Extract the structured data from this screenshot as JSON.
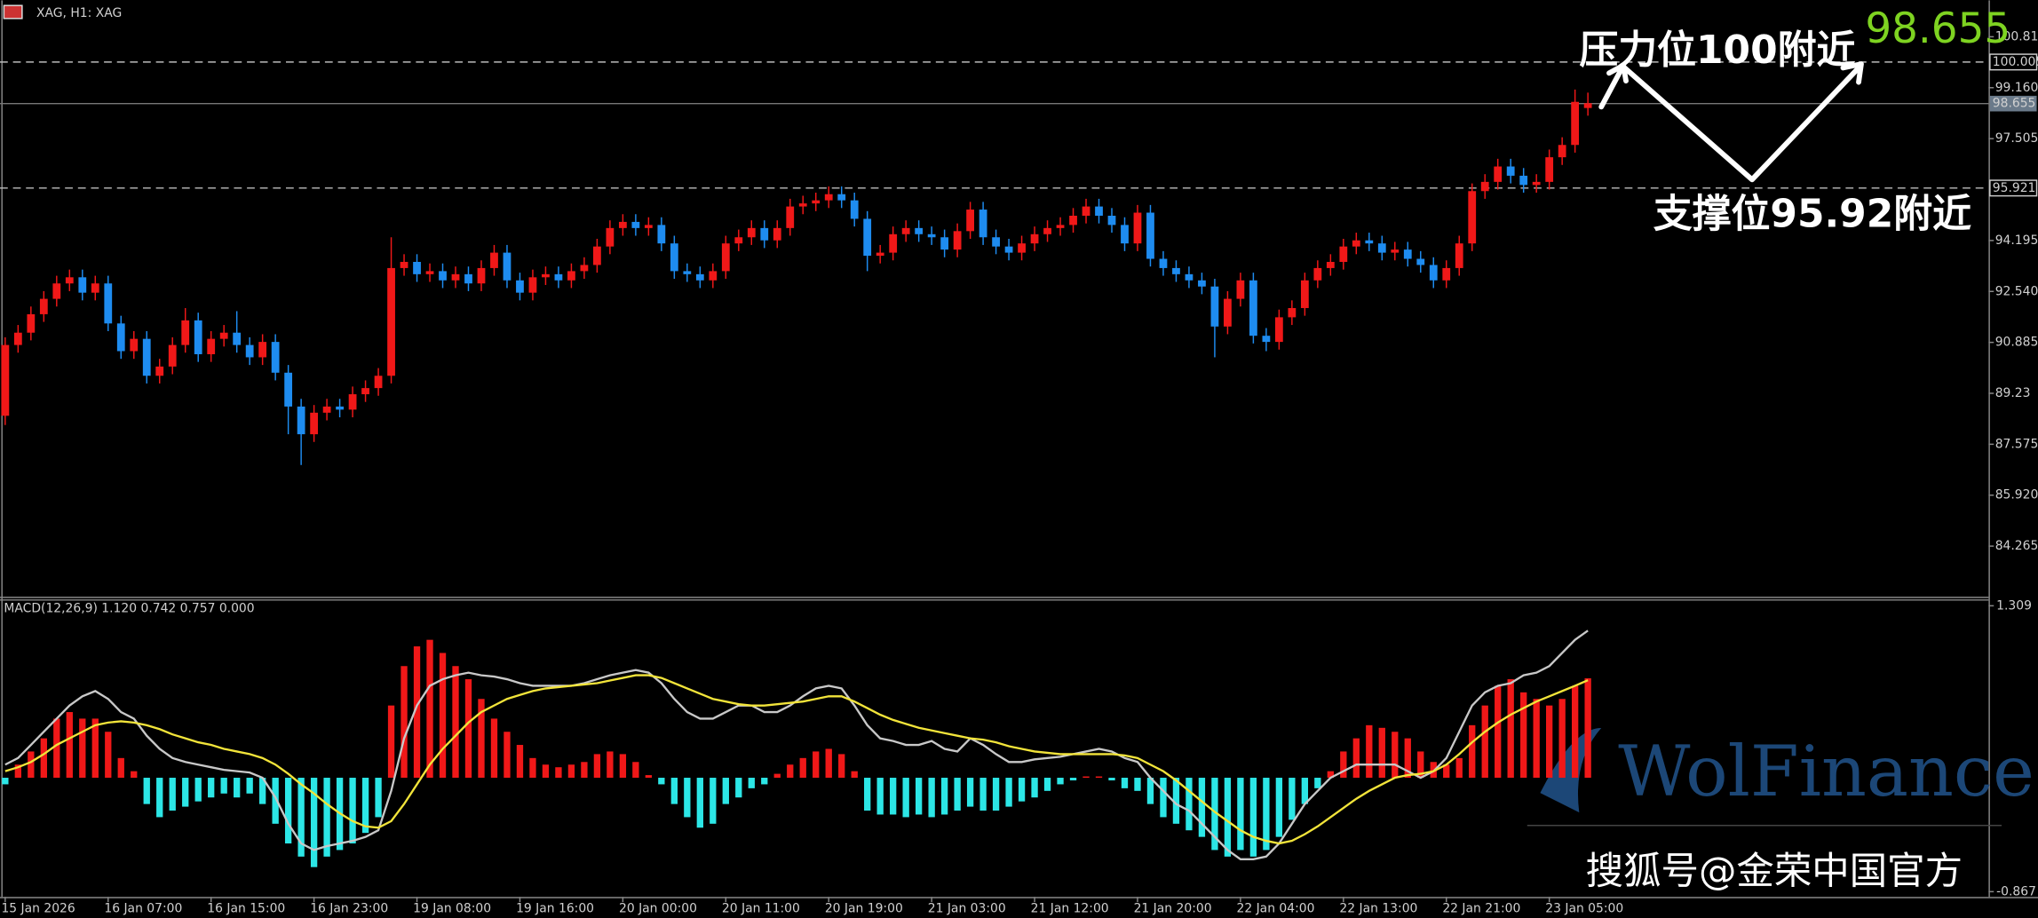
{
  "chart_data": [
    {
      "type": "candlestick",
      "title": "XAG, H1: XAG",
      "categories": [
        "15 Jan 2026",
        null,
        null,
        null,
        null,
        null,
        null,
        null,
        "16 Jan 07:00",
        null,
        null,
        null,
        null,
        null,
        null,
        null,
        "16 Jan 15:00",
        null,
        null,
        null,
        null,
        null,
        null,
        null,
        "16 Jan 23:00",
        null,
        null,
        null,
        null,
        null,
        null,
        null,
        "19 Jan 08:00",
        null,
        null,
        null,
        null,
        null,
        null,
        null,
        "19 Jan 16:00",
        null,
        null,
        null,
        null,
        null,
        null,
        null,
        "20 Jan 00:00",
        null,
        null,
        null,
        null,
        null,
        null,
        null,
        "20 Jan 11:00",
        null,
        null,
        null,
        null,
        null,
        null,
        null,
        "20 Jan 19:00",
        null,
        null,
        null,
        null,
        null,
        null,
        null,
        "21 Jan 03:00",
        null,
        null,
        null,
        null,
        null,
        null,
        null,
        "21 Jan 12:00",
        null,
        null,
        null,
        null,
        null,
        null,
        null,
        "21 Jan 20:00",
        null,
        null,
        null,
        null,
        null,
        null,
        null,
        "22 Jan 04:00",
        null,
        null,
        null,
        null,
        null,
        null,
        null,
        "22 Jan 13:00",
        null,
        null,
        null,
        null,
        null,
        null,
        null,
        "22 Jan 21:00",
        null,
        null,
        null,
        null,
        null,
        null,
        null,
        "23 Jan 05:00",
        null,
        null,
        null
      ],
      "open": [
        88.5,
        90.8,
        91.2,
        91.8,
        92.3,
        92.8,
        93.0,
        92.5,
        92.8,
        91.5,
        90.6,
        91.0,
        89.8,
        90.1,
        90.8,
        91.6,
        90.5,
        91.0,
        91.2,
        90.8,
        90.4,
        90.9,
        89.9,
        88.8,
        87.9,
        88.6,
        88.8,
        88.7,
        89.2,
        89.4,
        89.8,
        93.3,
        93.5,
        93.1,
        93.2,
        92.9,
        93.1,
        92.8,
        93.3,
        93.8,
        92.9,
        92.5,
        93.0,
        93.1,
        92.9,
        93.2,
        93.4,
        94.0,
        94.6,
        94.8,
        94.6,
        94.7,
        94.1,
        93.2,
        93.1,
        92.9,
        93.2,
        94.1,
        94.3,
        94.6,
        94.2,
        94.6,
        95.3,
        95.4,
        95.5,
        95.7,
        95.5,
        94.9,
        93.7,
        93.8,
        94.4,
        94.6,
        94.4,
        94.3,
        93.9,
        94.5,
        95.2,
        94.3,
        94.0,
        93.8,
        94.1,
        94.4,
        94.6,
        94.7,
        95.0,
        95.3,
        95.0,
        94.7,
        94.1,
        95.1,
        93.6,
        93.3,
        93.1,
        92.9,
        92.7,
        91.4,
        92.3,
        92.9,
        91.1,
        90.9,
        91.7,
        92.0,
        92.9,
        93.3,
        93.5,
        94.0,
        94.2,
        94.1,
        93.8,
        93.9,
        93.6,
        93.4,
        92.9,
        93.3,
        94.1,
        95.8,
        96.1,
        96.6,
        96.3,
        96.0,
        96.1,
        96.9,
        97.3,
        98.5
      ],
      "high": [
        91.05,
        91.45,
        92.05,
        92.55,
        93.05,
        93.25,
        93.25,
        93.05,
        93.05,
        91.75,
        91.25,
        91.25,
        90.35,
        91.05,
        92.0,
        91.85,
        91.25,
        91.45,
        91.9,
        91.05,
        91.15,
        91.15,
        90.15,
        89.05,
        88.85,
        89.05,
        89.05,
        89.45,
        89.65,
        90.05,
        94.3,
        93.75,
        93.75,
        93.45,
        93.45,
        93.35,
        93.35,
        93.55,
        94.05,
        94.05,
        93.15,
        93.25,
        93.35,
        93.35,
        93.45,
        93.65,
        94.25,
        94.85,
        95.05,
        95.05,
        94.95,
        94.95,
        94.35,
        93.45,
        93.35,
        93.45,
        94.35,
        94.55,
        94.85,
        94.85,
        94.85,
        95.55,
        95.65,
        95.75,
        95.95,
        95.95,
        95.75,
        95.15,
        94.05,
        94.65,
        94.85,
        94.85,
        94.65,
        94.55,
        94.75,
        95.45,
        95.45,
        94.55,
        94.25,
        94.35,
        94.65,
        94.85,
        94.95,
        95.25,
        95.55,
        95.55,
        95.25,
        94.95,
        95.35,
        95.35,
        93.85,
        93.55,
        93.35,
        93.15,
        92.95,
        92.55,
        93.15,
        93.15,
        91.35,
        91.95,
        92.25,
        93.15,
        93.55,
        93.75,
        94.25,
        94.45,
        94.45,
        94.35,
        94.15,
        94.15,
        93.85,
        93.65,
        93.55,
        94.35,
        96.05,
        96.35,
        96.85,
        96.85,
        96.55,
        96.35,
        97.15,
        97.55,
        99.1,
        99.0
      ],
      "low": [
        88.2,
        90.55,
        90.95,
        91.55,
        92.05,
        92.55,
        92.25,
        92.25,
        91.25,
        90.35,
        90.35,
        89.55,
        89.55,
        89.85,
        90.55,
        90.25,
        90.25,
        90.75,
        90.55,
        90.15,
        90.15,
        89.65,
        87.9,
        86.9,
        87.65,
        88.35,
        88.45,
        88.45,
        88.95,
        89.15,
        89.55,
        93.05,
        92.85,
        92.85,
        92.65,
        92.65,
        92.55,
        92.55,
        93.05,
        92.65,
        92.25,
        92.25,
        92.75,
        92.65,
        92.65,
        92.95,
        93.15,
        93.75,
        94.35,
        94.35,
        94.35,
        93.85,
        92.95,
        92.85,
        92.65,
        92.65,
        92.95,
        93.85,
        94.05,
        93.95,
        93.95,
        94.35,
        95.05,
        95.15,
        95.25,
        95.25,
        94.65,
        93.2,
        93.45,
        93.55,
        94.15,
        94.15,
        94.05,
        93.65,
        93.65,
        94.25,
        94.05,
        93.75,
        93.55,
        93.55,
        93.85,
        94.15,
        94.35,
        94.45,
        94.75,
        94.75,
        94.45,
        93.85,
        93.85,
        93.35,
        93.05,
        92.85,
        92.65,
        92.45,
        90.4,
        91.15,
        92.05,
        90.85,
        90.6,
        90.65,
        91.45,
        91.75,
        92.65,
        93.05,
        93.25,
        93.75,
        93.85,
        93.55,
        93.55,
        93.35,
        93.15,
        92.65,
        92.65,
        93.05,
        93.85,
        95.55,
        95.85,
        96.05,
        95.75,
        95.75,
        95.85,
        96.65,
        97.05,
        98.25
      ],
      "close": [
        90.8,
        91.2,
        91.8,
        92.3,
        92.8,
        93.0,
        92.5,
        92.8,
        91.5,
        90.6,
        91.0,
        89.8,
        90.1,
        90.8,
        91.6,
        90.5,
        91.0,
        91.2,
        90.8,
        90.4,
        90.9,
        89.9,
        88.8,
        87.9,
        88.6,
        88.8,
        88.7,
        89.2,
        89.4,
        89.8,
        93.3,
        93.5,
        93.1,
        93.2,
        92.9,
        93.1,
        92.8,
        93.3,
        93.8,
        92.9,
        92.5,
        93.0,
        93.1,
        92.9,
        93.2,
        93.4,
        94.0,
        94.6,
        94.8,
        94.6,
        94.7,
        94.1,
        93.2,
        93.1,
        92.9,
        93.2,
        94.1,
        94.3,
        94.6,
        94.2,
        94.6,
        95.3,
        95.4,
        95.5,
        95.7,
        95.5,
        94.9,
        93.7,
        93.8,
        94.4,
        94.6,
        94.4,
        94.3,
        93.9,
        94.5,
        95.2,
        94.3,
        94.0,
        93.8,
        94.1,
        94.4,
        94.6,
        94.7,
        95.0,
        95.3,
        95.0,
        94.7,
        94.1,
        95.1,
        93.6,
        93.3,
        93.1,
        92.9,
        92.7,
        91.4,
        92.3,
        92.9,
        91.1,
        90.9,
        91.7,
        92.0,
        92.9,
        93.3,
        93.5,
        94.0,
        94.2,
        94.1,
        93.8,
        93.9,
        93.6,
        93.4,
        92.9,
        93.3,
        94.1,
        95.8,
        96.1,
        96.6,
        96.3,
        96.0,
        96.1,
        96.9,
        97.3,
        98.7,
        98.655
      ],
      "color_up": "#f01818",
      "color_down": "#1e8cf0",
      "ylim": [
        82.62,
        102.0
      ],
      "yticks": [
        100.815,
        {
          "value": 99.16,
          "label": "99.160"
        },
        97.505,
        94.195,
        {
          "value": 92.54,
          "label": "92.540"
        },
        90.885,
        89.23,
        87.575,
        {
          "value": 85.92,
          "label": "85.920"
        },
        84.265
      ],
      "levels": [
        {
          "value": 100.005,
          "label": "100.005",
          "style": "dashed"
        },
        {
          "value": 98.655,
          "label": "98.655",
          "style": "solid"
        },
        {
          "value": 95.921,
          "label": "95.921",
          "style": "dashed"
        }
      ],
      "annotations": {
        "resistance": "压力位100附近",
        "price": "98.655",
        "support": "支撑位95.92附近",
        "watermark": "WolFinance",
        "source": "搜狐号@金荣中国官方"
      }
    },
    {
      "type": "macd",
      "label": "MACD(12,26,9) 1.120 0.742 0.757 0.000",
      "ylim": [
        -0.907,
        1.358
      ],
      "yticks": [
        1.309,
        -0.867
      ],
      "histogram": [
        -0.05,
        0.1,
        0.2,
        0.3,
        0.45,
        0.5,
        0.45,
        0.45,
        0.35,
        0.15,
        0.05,
        -0.2,
        -0.3,
        -0.25,
        -0.22,
        -0.18,
        -0.15,
        -0.12,
        -0.15,
        -0.12,
        -0.2,
        -0.35,
        -0.5,
        -0.6,
        -0.68,
        -0.6,
        -0.55,
        -0.5,
        -0.42,
        -0.3,
        0.55,
        0.85,
        1.0,
        1.05,
        0.95,
        0.85,
        0.75,
        0.6,
        0.45,
        0.35,
        0.25,
        0.15,
        0.1,
        0.08,
        0.1,
        0.12,
        0.18,
        0.2,
        0.18,
        0.12,
        0.02,
        -0.05,
        -0.2,
        -0.3,
        -0.38,
        -0.35,
        -0.2,
        -0.15,
        -0.08,
        -0.05,
        0.03,
        0.1,
        0.15,
        0.2,
        0.22,
        0.18,
        0.05,
        -0.25,
        -0.28,
        -0.28,
        -0.3,
        -0.28,
        -0.3,
        -0.28,
        -0.25,
        -0.22,
        -0.25,
        -0.25,
        -0.22,
        -0.18,
        -0.15,
        -0.1,
        -0.05,
        -0.02,
        0.01,
        0.01,
        -0.02,
        -0.08,
        -0.1,
        -0.2,
        -0.3,
        -0.35,
        -0.4,
        -0.45,
        -0.55,
        -0.6,
        -0.55,
        -0.6,
        -0.55,
        -0.45,
        -0.32,
        -0.2,
        -0.08,
        0.05,
        0.2,
        0.3,
        0.4,
        0.38,
        0.35,
        0.3,
        0.2,
        0.12,
        0.1,
        0.15,
        0.4,
        0.55,
        0.7,
        0.75,
        0.65,
        0.6,
        0.55,
        0.6,
        0.7,
        0.757
      ],
      "macd": [
        0.1,
        0.15,
        0.25,
        0.35,
        0.45,
        0.55,
        0.62,
        0.66,
        0.6,
        0.5,
        0.45,
        0.32,
        0.22,
        0.15,
        0.12,
        0.1,
        0.08,
        0.06,
        0.05,
        0.04,
        0.0,
        -0.15,
        -0.35,
        -0.5,
        -0.55,
        -0.52,
        -0.5,
        -0.48,
        -0.45,
        -0.4,
        -0.1,
        0.3,
        0.55,
        0.7,
        0.75,
        0.78,
        0.8,
        0.78,
        0.77,
        0.75,
        0.72,
        0.7,
        0.7,
        0.7,
        0.7,
        0.72,
        0.75,
        0.78,
        0.8,
        0.82,
        0.8,
        0.72,
        0.6,
        0.5,
        0.45,
        0.45,
        0.5,
        0.55,
        0.55,
        0.5,
        0.5,
        0.55,
        0.62,
        0.68,
        0.7,
        0.68,
        0.55,
        0.4,
        0.3,
        0.28,
        0.25,
        0.25,
        0.28,
        0.22,
        0.2,
        0.3,
        0.25,
        0.18,
        0.12,
        0.12,
        0.14,
        0.15,
        0.16,
        0.18,
        0.2,
        0.22,
        0.2,
        0.15,
        0.12,
        0.0,
        -0.1,
        -0.2,
        -0.25,
        -0.35,
        -0.45,
        -0.55,
        -0.62,
        -0.62,
        -0.6,
        -0.5,
        -0.35,
        -0.2,
        -0.1,
        0.0,
        0.05,
        0.1,
        0.1,
        0.1,
        0.1,
        0.05,
        0.0,
        0.05,
        0.15,
        0.35,
        0.55,
        0.65,
        0.7,
        0.72,
        0.78,
        0.8,
        0.85,
        0.95,
        1.05,
        1.12
      ],
      "signal": [
        0.05,
        0.08,
        0.12,
        0.18,
        0.25,
        0.3,
        0.35,
        0.4,
        0.42,
        0.43,
        0.42,
        0.4,
        0.37,
        0.33,
        0.3,
        0.27,
        0.25,
        0.22,
        0.2,
        0.18,
        0.15,
        0.1,
        0.03,
        -0.05,
        -0.12,
        -0.2,
        -0.27,
        -0.33,
        -0.37,
        -0.38,
        -0.33,
        -0.2,
        -0.05,
        0.1,
        0.22,
        0.32,
        0.42,
        0.5,
        0.55,
        0.6,
        0.63,
        0.66,
        0.68,
        0.69,
        0.7,
        0.71,
        0.72,
        0.74,
        0.76,
        0.78,
        0.78,
        0.76,
        0.72,
        0.68,
        0.64,
        0.6,
        0.58,
        0.56,
        0.55,
        0.55,
        0.56,
        0.57,
        0.58,
        0.6,
        0.62,
        0.62,
        0.58,
        0.53,
        0.48,
        0.44,
        0.41,
        0.38,
        0.36,
        0.34,
        0.32,
        0.3,
        0.29,
        0.27,
        0.24,
        0.22,
        0.2,
        0.19,
        0.18,
        0.18,
        0.18,
        0.18,
        0.18,
        0.17,
        0.15,
        0.1,
        0.05,
        -0.02,
        -0.1,
        -0.18,
        -0.26,
        -0.33,
        -0.4,
        -0.45,
        -0.48,
        -0.5,
        -0.48,
        -0.43,
        -0.37,
        -0.3,
        -0.23,
        -0.16,
        -0.1,
        -0.05,
        0.0,
        0.02,
        0.03,
        0.05,
        0.1,
        0.18,
        0.27,
        0.35,
        0.42,
        0.48,
        0.53,
        0.58,
        0.62,
        0.66,
        0.7,
        0.742
      ],
      "color_pos": "#f01818",
      "color_neg": "#2ce6e6",
      "color_macd": "#c8c8c8",
      "color_signal": "#f2e43a"
    }
  ]
}
